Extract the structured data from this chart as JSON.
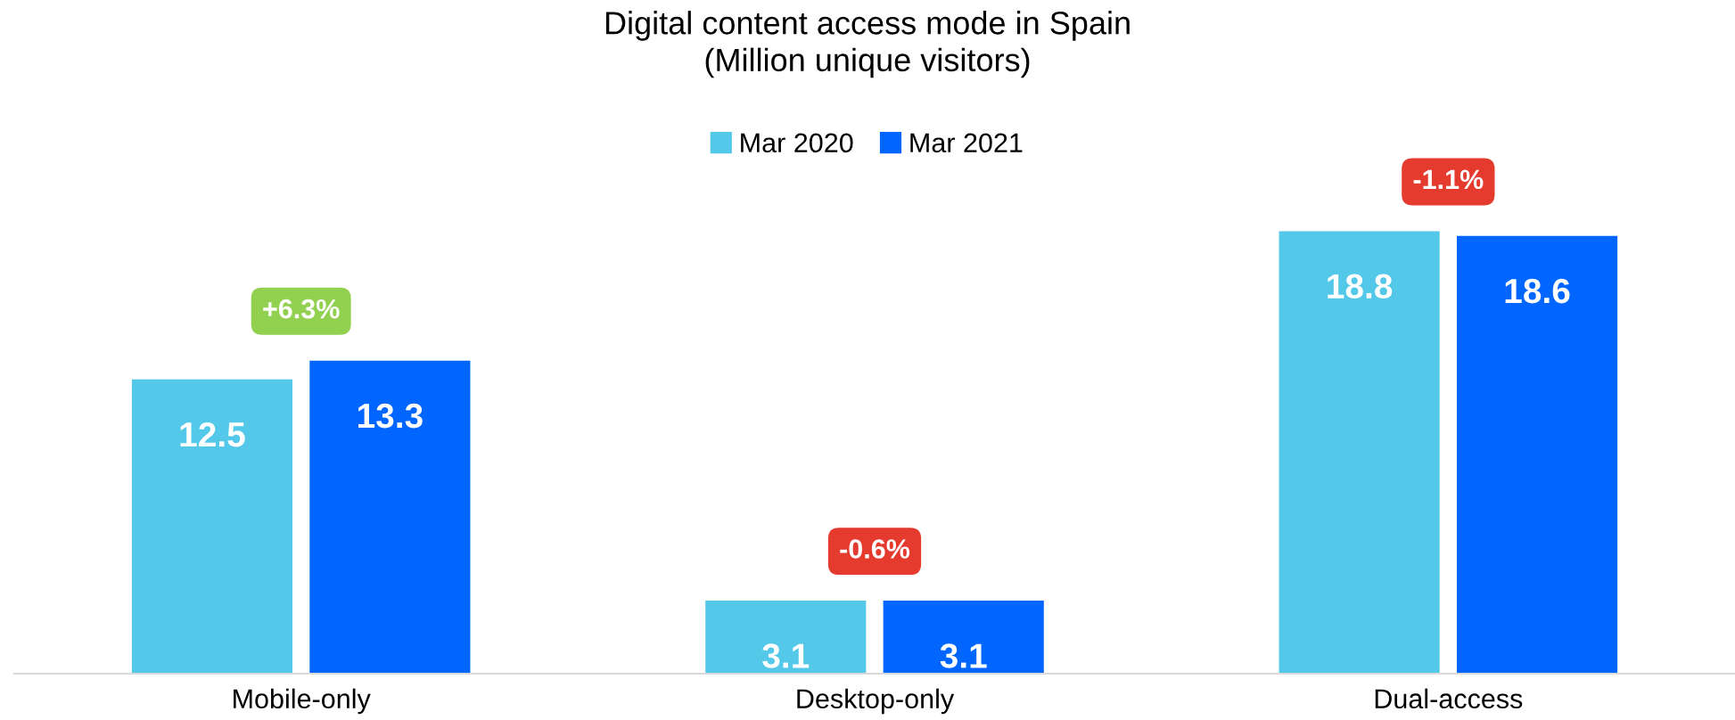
{
  "chart_data": {
    "type": "bar",
    "title": "Digital content access mode in Spain\n(Million unique visitors)",
    "categories": [
      "Mobile-only",
      "Desktop-only",
      "Dual-access"
    ],
    "series": [
      {
        "name": "Mar 2020",
        "color": "#54c8e8",
        "values": [
          12.5,
          3.1,
          18.8
        ]
      },
      {
        "name": "Mar 2021",
        "color": "#0066ff",
        "values": [
          13.3,
          3.1,
          18.6
        ]
      }
    ],
    "data_labels": true,
    "legend": "top",
    "grid": false,
    "annotations": [
      "+6.3%",
      "-0.6%",
      "-1.1%"
    ]
  }
}
